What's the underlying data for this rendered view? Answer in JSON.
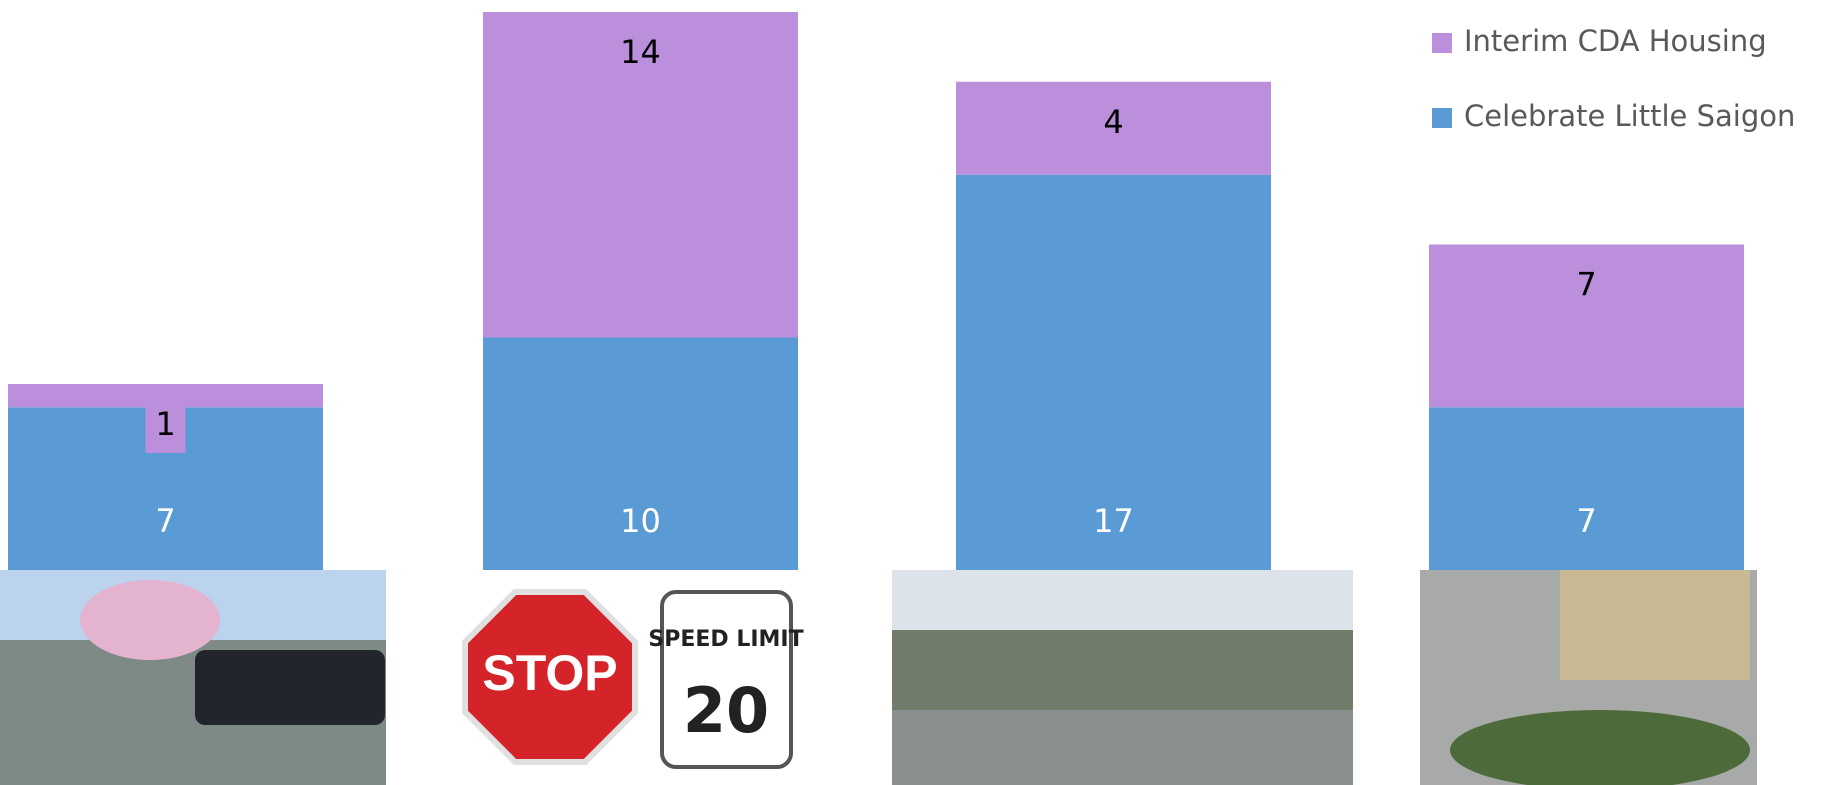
{
  "chart_data": {
    "type": "stacked_bar",
    "categories": [
      null,
      null,
      null,
      null
    ],
    "series": [
      {
        "name": "Celebrate Little Saigon",
        "color": "#5b9bd5",
        "values": [
          7,
          10,
          17,
          7
        ]
      },
      {
        "name": "Interim CDA Housing",
        "color": "#bc8fdd",
        "values": [
          1,
          14,
          4,
          7
        ]
      }
    ],
    "legend": "top-right"
  },
  "photo_text": {
    "stop": "STOP",
    "speed_limit": "SPEED LIMIT",
    "speed_value": "20"
  }
}
